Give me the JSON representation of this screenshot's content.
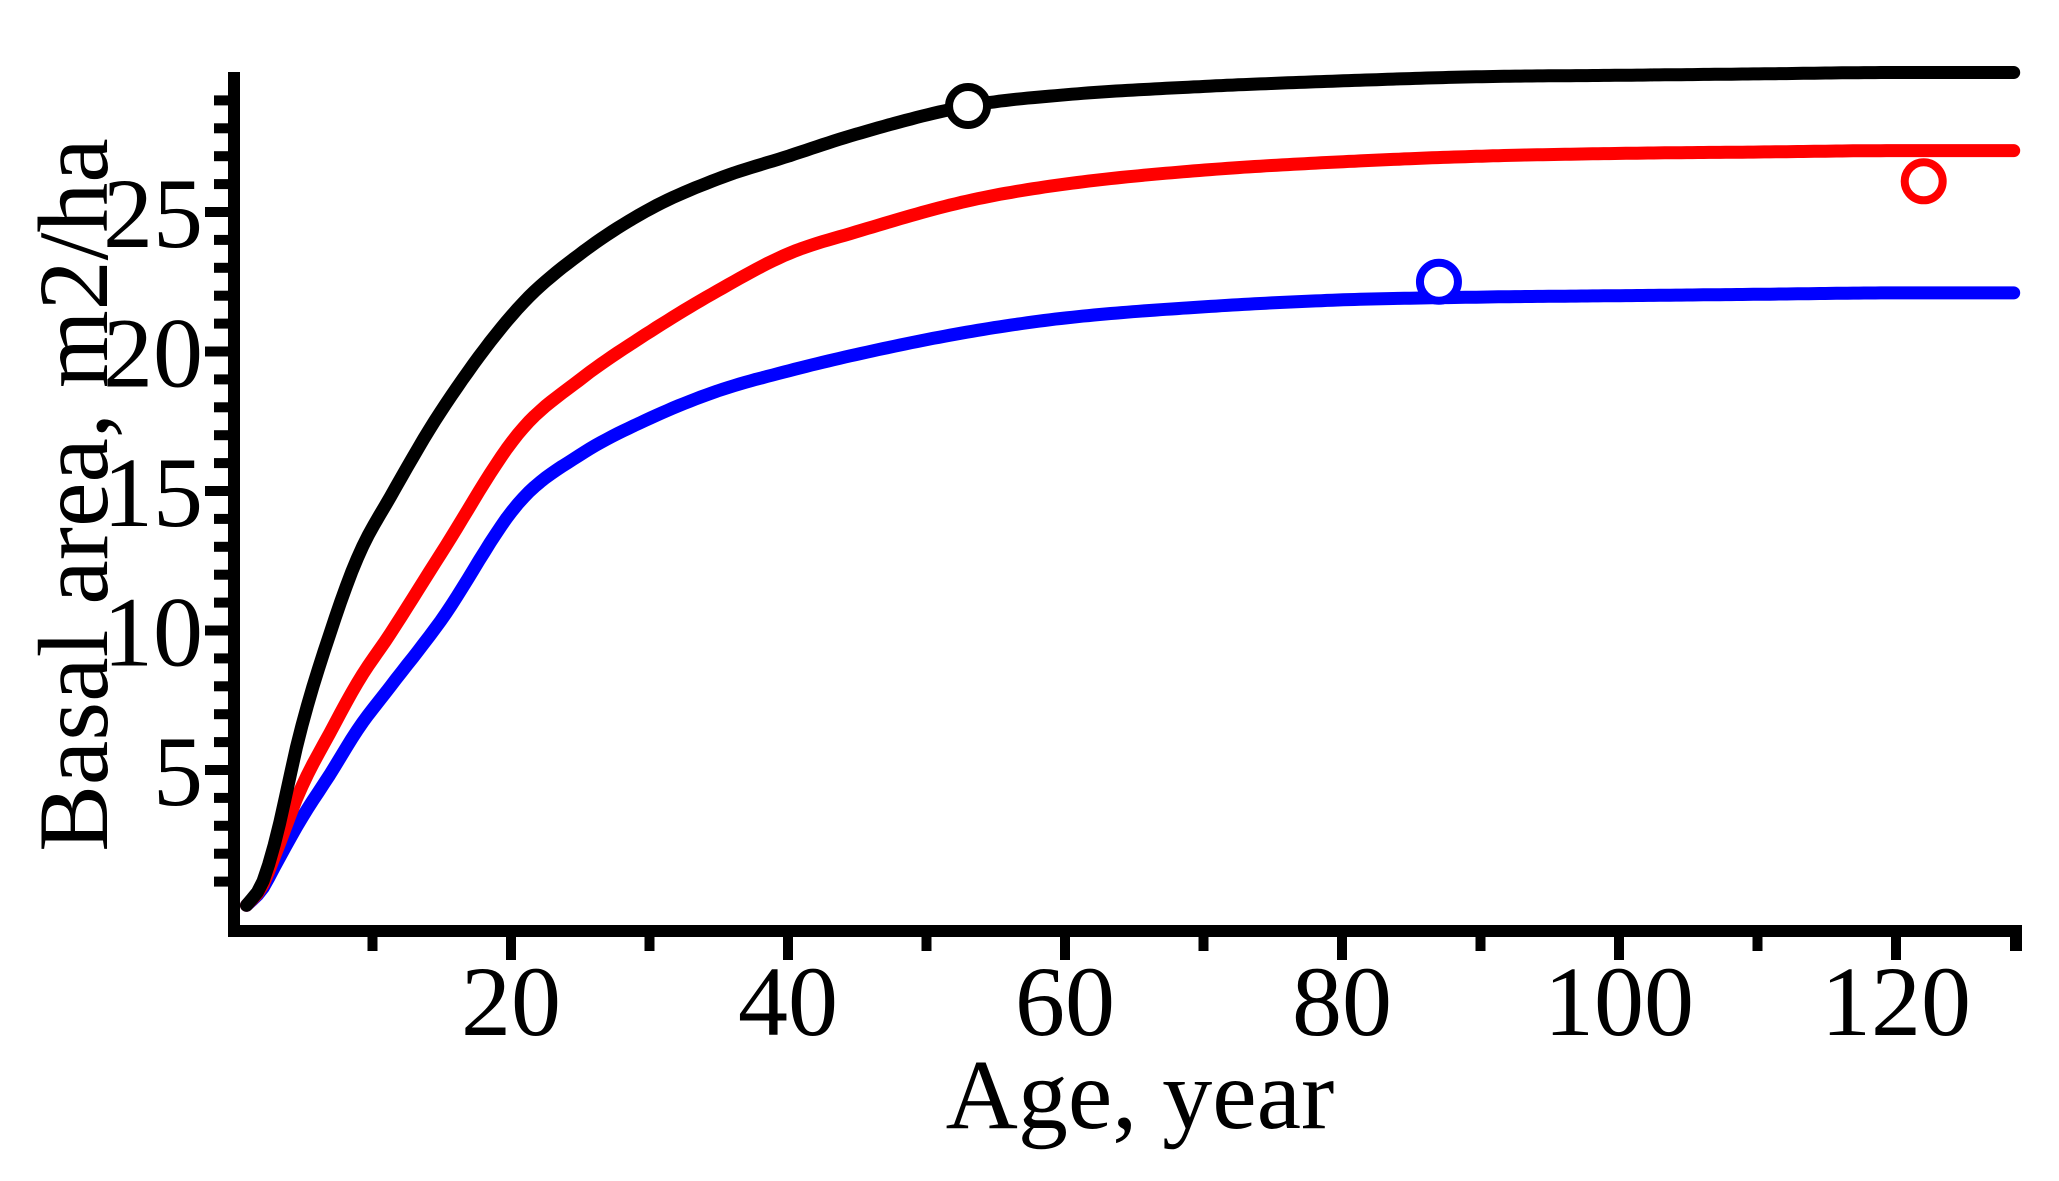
{
  "chart_data": {
    "type": "line",
    "title": "",
    "xlabel": "Age, year",
    "ylabel": "Basal area, m2/ha",
    "xlim": [
      0,
      131
    ],
    "ylim": [
      0,
      30
    ],
    "x_ticks_major": [
      20,
      40,
      60,
      80,
      100,
      120
    ],
    "x_ticks_minor": [
      10,
      30,
      50,
      70,
      90,
      110
    ],
    "y_ticks_major": [
      5,
      10,
      15,
      20,
      25
    ],
    "y_tick_minor_step": 1,
    "grid": false,
    "legend": "none",
    "colors": {
      "series1": "#000000",
      "series2": "#ff0000",
      "series3": "#0000ff",
      "marker_fill": "#ffffff"
    },
    "series": [
      {
        "name": "black",
        "color": "#000000",
        "asymptote": 30.0,
        "points": [
          [
            0.9,
            0.15
          ],
          [
            2,
            0.9
          ],
          [
            3,
            2.5
          ],
          [
            4.8,
            6.4
          ],
          [
            7,
            10.0
          ],
          [
            9,
            12.7
          ],
          [
            11.3,
            14.8
          ],
          [
            15,
            17.9
          ],
          [
            20.6,
            21.6
          ],
          [
            25,
            23.5
          ],
          [
            30,
            25.1
          ],
          [
            35,
            26.2
          ],
          [
            40,
            27.0
          ],
          [
            45,
            27.8
          ],
          [
            53,
            28.8
          ],
          [
            60,
            29.2
          ],
          [
            70,
            29.5
          ],
          [
            80,
            29.7
          ],
          [
            90,
            29.85
          ],
          [
            100,
            29.9
          ],
          [
            110,
            29.95
          ],
          [
            120,
            30.0
          ],
          [
            128.7,
            30.0
          ]
        ]
      },
      {
        "name": "red",
        "color": "#ff0000",
        "asymptote": 27.2,
        "points": [
          [
            0.9,
            0.15
          ],
          [
            2,
            0.8
          ],
          [
            3,
            2.0
          ],
          [
            4.8,
            4.3
          ],
          [
            7,
            6.4
          ],
          [
            9,
            8.2
          ],
          [
            11.3,
            9.9
          ],
          [
            15,
            12.8
          ],
          [
            20.6,
            17.1
          ],
          [
            25,
            19.0
          ],
          [
            30,
            20.7
          ],
          [
            35,
            22.2
          ],
          [
            40,
            23.5
          ],
          [
            45,
            24.3
          ],
          [
            53,
            25.4
          ],
          [
            60,
            26.0
          ],
          [
            70,
            26.5
          ],
          [
            80,
            26.8
          ],
          [
            90,
            27.0
          ],
          [
            100,
            27.1
          ],
          [
            110,
            27.15
          ],
          [
            120,
            27.2
          ],
          [
            128.7,
            27.2
          ]
        ]
      },
      {
        "name": "blue",
        "color": "#0000ff",
        "asymptote": 22.1,
        "points": [
          [
            0.9,
            0.15
          ],
          [
            2,
            0.7
          ],
          [
            3,
            1.6
          ],
          [
            4.8,
            3.2
          ],
          [
            7,
            4.9
          ],
          [
            9,
            6.5
          ],
          [
            11.3,
            8.0
          ],
          [
            15,
            10.4
          ],
          [
            20.6,
            14.6
          ],
          [
            25,
            16.3
          ],
          [
            30,
            17.6
          ],
          [
            35,
            18.6
          ],
          [
            40,
            19.3
          ],
          [
            45,
            19.9
          ],
          [
            53,
            20.7
          ],
          [
            60,
            21.2
          ],
          [
            70,
            21.6
          ],
          [
            80,
            21.85
          ],
          [
            90,
            21.95
          ],
          [
            100,
            22.0
          ],
          [
            110,
            22.05
          ],
          [
            120,
            22.1
          ],
          [
            128.7,
            22.1
          ]
        ]
      }
    ],
    "markers": [
      {
        "series": "black",
        "x": 53,
        "y": 28.8,
        "color": "#000000"
      },
      {
        "series": "blue",
        "x": 87,
        "y": 22.5,
        "color": "#0000ff"
      },
      {
        "series": "red",
        "x": 122,
        "y": 26.1,
        "color": "#ff0000"
      }
    ]
  }
}
